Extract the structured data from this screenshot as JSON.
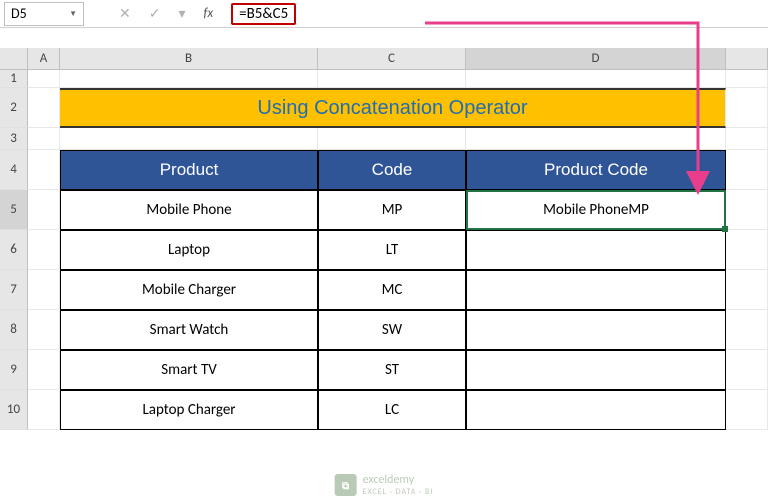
{
  "nameBox": {
    "value": "D5"
  },
  "formulaBar": {
    "icons": {
      "cancel": "✕",
      "confirm": "✓",
      "dropdown": "▾"
    },
    "fxLabel": "fx",
    "formula": "=B5&C5",
    "highlightColor": "#c00000"
  },
  "columns": [
    {
      "id": "A",
      "label": "A",
      "widthClass": "wA"
    },
    {
      "id": "B",
      "label": "B",
      "widthClass": "wB"
    },
    {
      "id": "C",
      "label": "C",
      "widthClass": "wC"
    },
    {
      "id": "D",
      "label": "D",
      "widthClass": "wD",
      "active": true
    }
  ],
  "title": {
    "text": "Using Concatenation Operator",
    "bgColor": "#ffc000",
    "textColor": "#1f6db5",
    "fontFamily": "Comic Sans MS"
  },
  "headers": {
    "product": "Product",
    "code": "Code",
    "productCode": "Product Code",
    "bgColor": "#2f5597",
    "textColor": "#ffffff"
  },
  "activeRow": 5,
  "rows": [
    {
      "n": 5,
      "product": "Mobile Phone",
      "code": "MP",
      "result": "Mobile PhoneMP"
    },
    {
      "n": 6,
      "product": "Laptop",
      "code": "LT",
      "result": ""
    },
    {
      "n": 7,
      "product": "Mobile Charger",
      "code": "MC",
      "result": ""
    },
    {
      "n": 8,
      "product": "Smart Watch",
      "code": "SW",
      "result": ""
    },
    {
      "n": 9,
      "product": "Smart TV",
      "code": "ST",
      "result": ""
    },
    {
      "n": 10,
      "product": "Laptop Charger",
      "code": "LC",
      "result": ""
    }
  ],
  "arrow": {
    "color": "#e83e8c"
  },
  "watermark": {
    "brand": "exceldemy",
    "tagline": "EXCEL · DATA · BI"
  }
}
